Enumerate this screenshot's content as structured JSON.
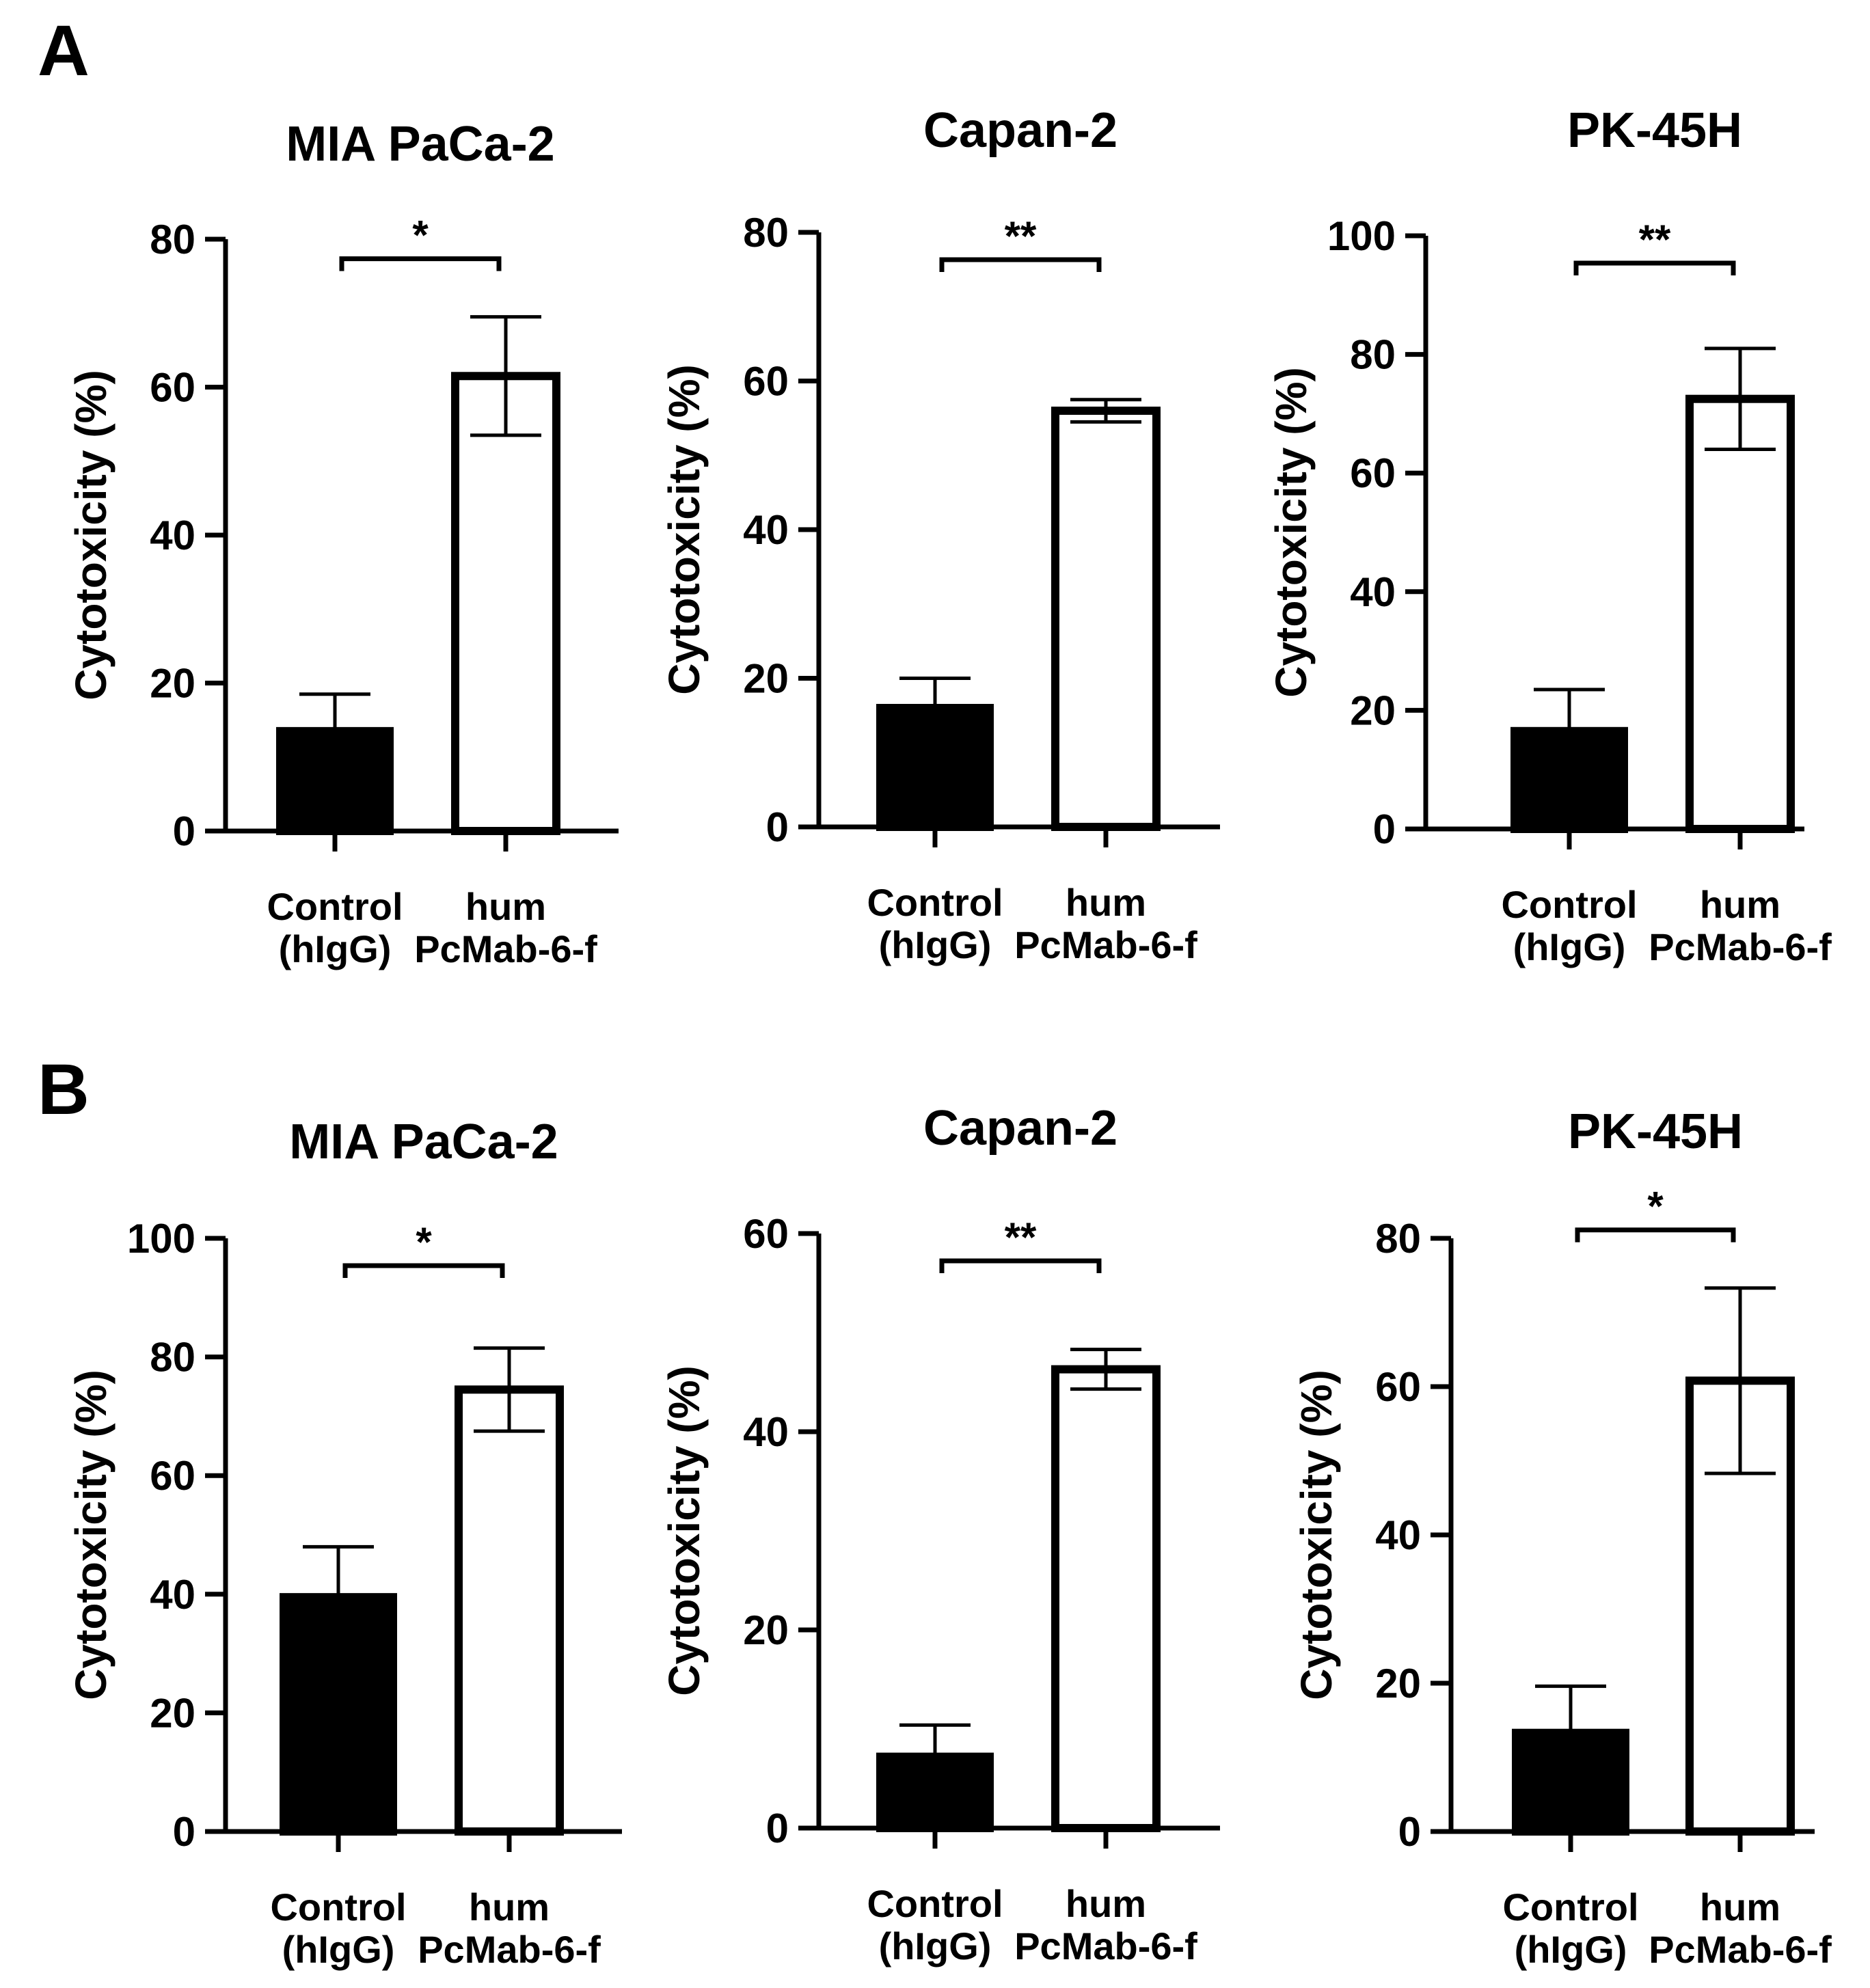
{
  "figure": {
    "panel_labels": [
      "A",
      "B"
    ],
    "colors": {
      "control_fill": "#000000",
      "treatment_fill": "#ffffff",
      "stroke": "#000000"
    }
  },
  "chart_data": [
    {
      "type": "bar",
      "panel": "A",
      "title": "MIA PaCa-2",
      "ylabel": "Cytotoxicity (%)",
      "ylim": [
        0,
        80
      ],
      "yticks": [
        0,
        20,
        40,
        60,
        80
      ],
      "categories": [
        "Control (hIgG)",
        "hum PcMab-6-f"
      ],
      "category_lines": [
        [
          "Control",
          "(hIgG)"
        ],
        [
          "hum",
          "PcMab-6-f"
        ]
      ],
      "values": [
        13.5,
        61.5
      ],
      "errors": [
        5.0,
        8.0
      ],
      "significance": "*"
    },
    {
      "type": "bar",
      "panel": "A",
      "title": "Capan-2",
      "ylabel": "Cytotoxicity (%)",
      "ylim": [
        0,
        80
      ],
      "yticks": [
        0,
        20,
        40,
        60,
        80
      ],
      "categories": [
        "Control (hIgG)",
        "hum PcMab-6-f"
      ],
      "category_lines": [
        [
          "Control",
          "(hIgG)"
        ],
        [
          "hum",
          "PcMab-6-f"
        ]
      ],
      "values": [
        16.0,
        56.0
      ],
      "errors": [
        4.0,
        1.5
      ],
      "significance": "**"
    },
    {
      "type": "bar",
      "panel": "A",
      "title": "PK-45H",
      "ylabel": "Cytotoxicity (%)",
      "ylim": [
        0,
        100
      ],
      "yticks": [
        0,
        20,
        40,
        60,
        80,
        100
      ],
      "categories": [
        "Control (hIgG)",
        "hum PcMab-6-f"
      ],
      "category_lines": [
        [
          "Control",
          "(hIgG)"
        ],
        [
          "hum",
          "PcMab-6-f"
        ]
      ],
      "values": [
        16.5,
        72.5
      ],
      "errors": [
        7.0,
        8.5
      ],
      "significance": "**"
    },
    {
      "type": "bar",
      "panel": "B",
      "title": "MIA PaCa-2",
      "ylabel": "Cytotoxicity (%)",
      "ylim": [
        0,
        100
      ],
      "yticks": [
        0,
        20,
        40,
        60,
        80,
        100
      ],
      "categories": [
        "Control (hIgG)",
        "hum PcMab-6-f"
      ],
      "category_lines": [
        [
          "Control",
          "(hIgG)"
        ],
        [
          "hum",
          "PcMab-6-f"
        ]
      ],
      "values": [
        39.5,
        74.5
      ],
      "errors": [
        8.5,
        7.0
      ],
      "significance": "*"
    },
    {
      "type": "bar",
      "panel": "B",
      "title": "Capan-2",
      "ylabel": "Cytotoxicity (%)",
      "ylim": [
        0,
        60
      ],
      "yticks": [
        0,
        20,
        40,
        60
      ],
      "categories": [
        "Control (hIgG)",
        "hum PcMab-6-f"
      ],
      "category_lines": [
        [
          "Control",
          "(hIgG)"
        ],
        [
          "hum",
          "PcMab-6-f"
        ]
      ],
      "values": [
        7.2,
        46.3
      ],
      "errors": [
        3.2,
        2.0
      ],
      "significance": "**"
    },
    {
      "type": "bar",
      "panel": "B",
      "title": "PK-45H",
      "ylabel": "Cytotoxicity (%)",
      "ylim": [
        0,
        80
      ],
      "yticks": [
        0,
        20,
        40,
        60,
        80
      ],
      "categories": [
        "Control (hIgG)",
        "hum PcMab-6-f"
      ],
      "category_lines": [
        [
          "Control",
          "(hIgG)"
        ],
        [
          "hum",
          "PcMab-6-f"
        ]
      ],
      "values": [
        13.3,
        60.8
      ],
      "errors": [
        6.3,
        12.5
      ],
      "significance": "*"
    }
  ]
}
